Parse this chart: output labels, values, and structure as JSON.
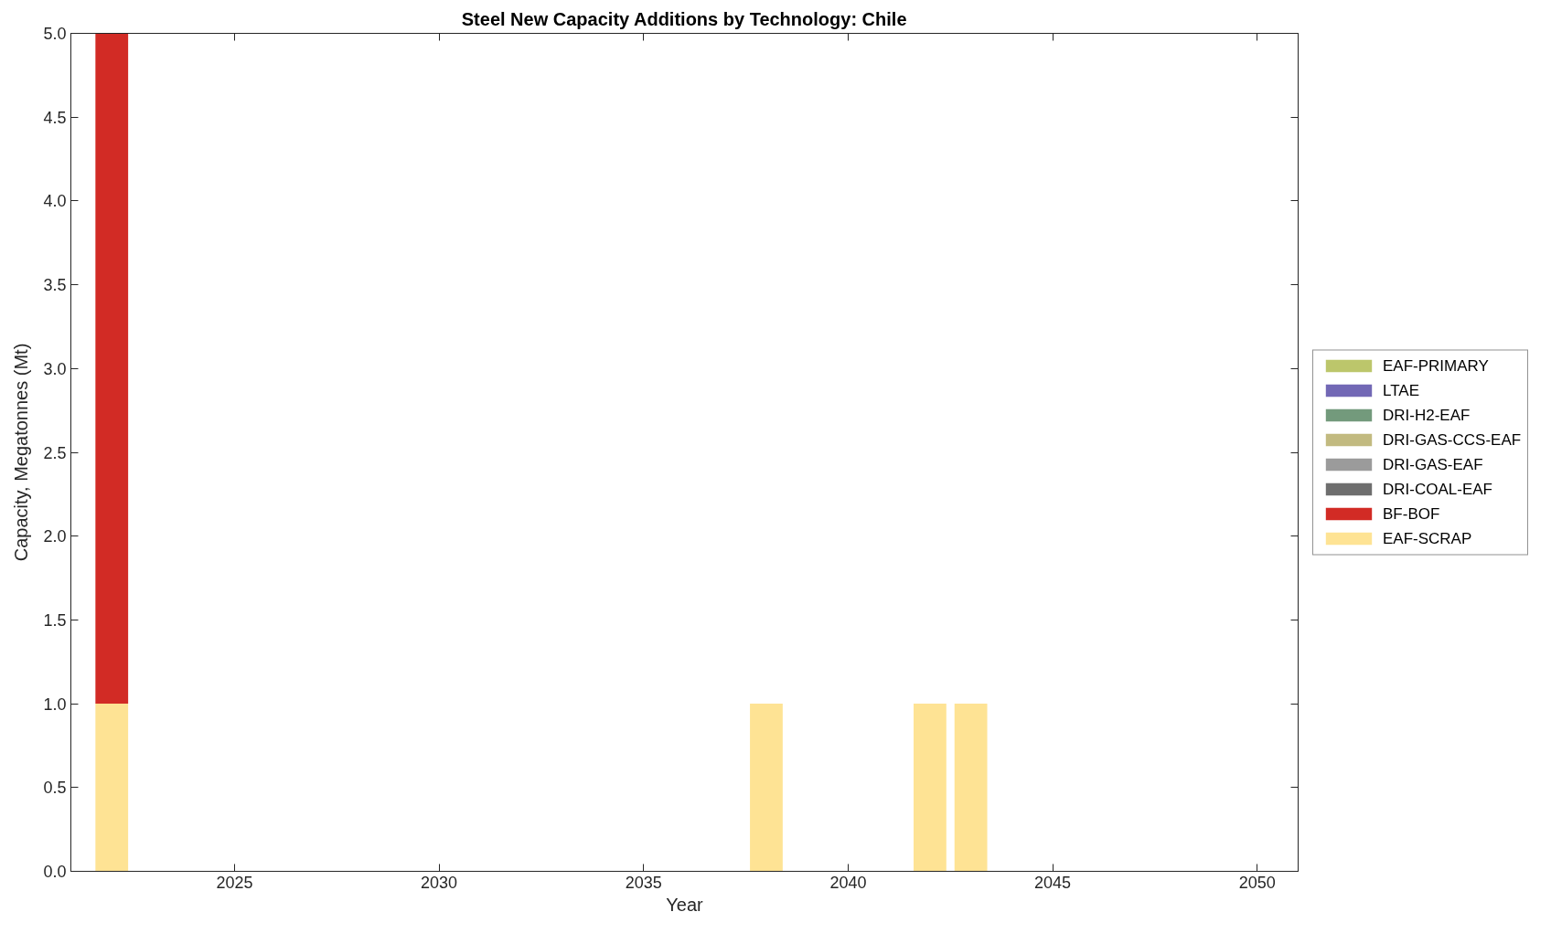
{
  "chart_data": {
    "type": "bar",
    "stacked": true,
    "title": "Steel New Capacity Additions by Technology: Chile",
    "xlabel": "Year",
    "ylabel": "Capacity, Megatonnes (Mt)",
    "x": [
      2022,
      2038,
      2042,
      2043
    ],
    "series": [
      {
        "name": "EAF-SCRAP",
        "color": "#fee394",
        "values": [
          1,
          1,
          1,
          1
        ]
      },
      {
        "name": "BF-BOF",
        "color": "#d22b25",
        "values": [
          4,
          0,
          0,
          0
        ]
      },
      {
        "name": "DRI-COAL-EAF",
        "color": "#6e6e6e",
        "values": [
          0,
          0,
          0,
          0
        ]
      },
      {
        "name": "DRI-GAS-EAF",
        "color": "#9b9b9b",
        "values": [
          0,
          0,
          0,
          0
        ]
      },
      {
        "name": "DRI-GAS-CCS-EAF",
        "color": "#c2ba80",
        "values": [
          0,
          0,
          0,
          0
        ]
      },
      {
        "name": "DRI-H2-EAF",
        "color": "#739a7c",
        "values": [
          0,
          0,
          0,
          0
        ]
      },
      {
        "name": "LTAE",
        "color": "#7268b5",
        "values": [
          0,
          0,
          0,
          0
        ]
      },
      {
        "name": "EAF-PRIMARY",
        "color": "#bcc66b",
        "values": [
          0,
          0,
          0,
          0
        ]
      }
    ],
    "xlim": [
      2021,
      2051
    ],
    "xticks": [
      2025,
      2030,
      2035,
      2040,
      2045,
      2050
    ],
    "ylim": [
      0,
      5
    ],
    "yticks": [
      {
        "value": 0,
        "label": "0.0"
      },
      0.5,
      {
        "value": 1,
        "label": "1.0"
      },
      1.5,
      {
        "value": 2,
        "label": "2.0"
      },
      2.5,
      {
        "value": 3,
        "label": "3.0"
      },
      3.5,
      {
        "value": 4,
        "label": "4.0"
      },
      4.5,
      {
        "value": 5,
        "label": "5.0"
      }
    ],
    "grid": false,
    "legend": "right"
  }
}
